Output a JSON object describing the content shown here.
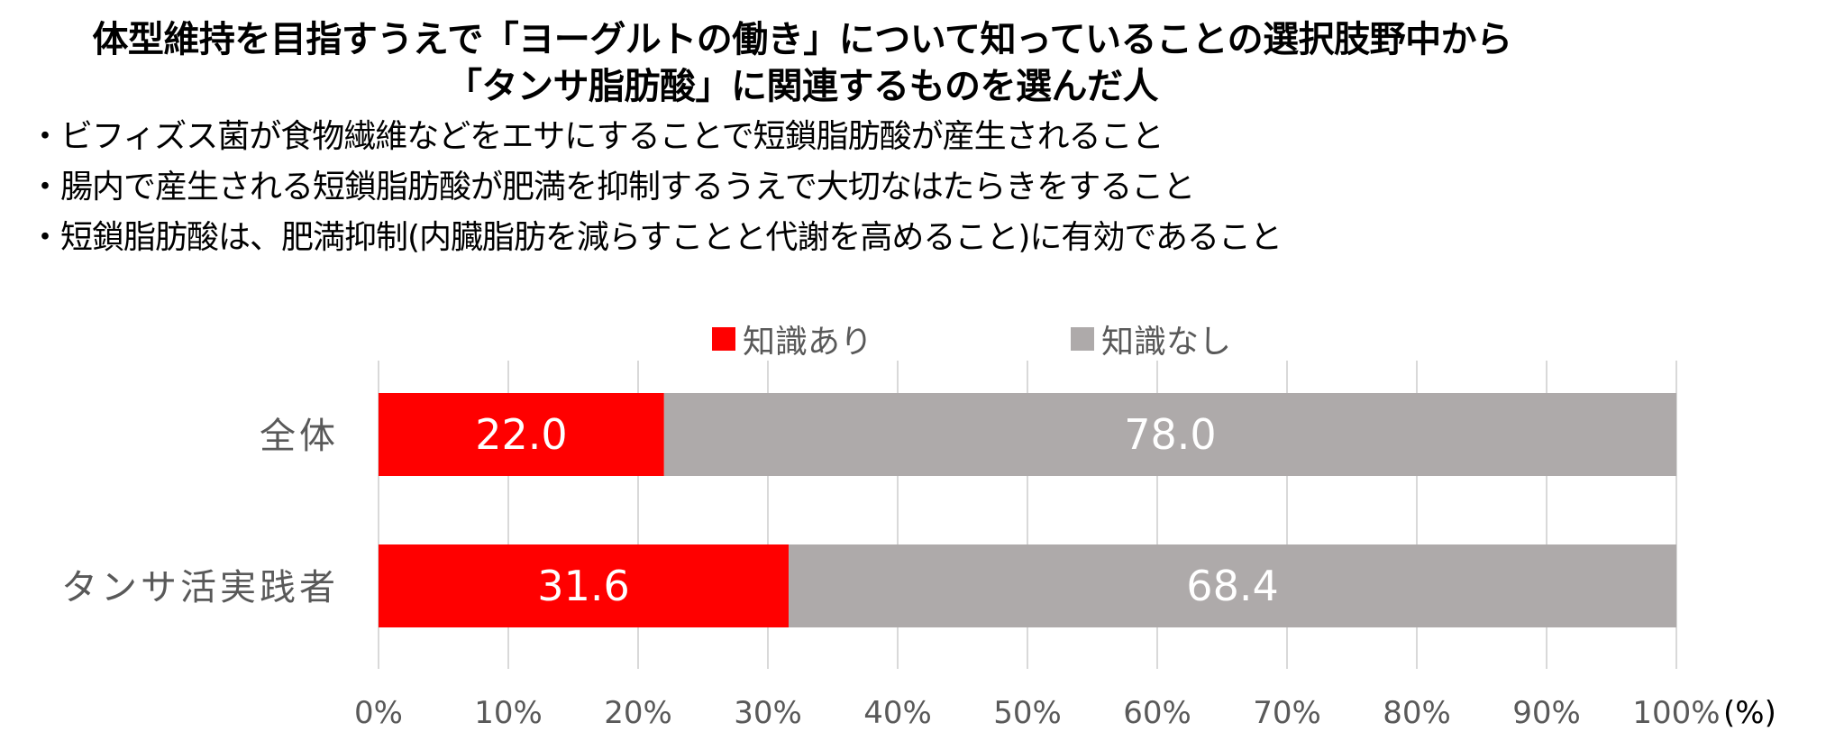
{
  "header": {
    "title_line1": "体型維持を目指すうえで「ヨーグルトの働き」について知っていることの選択肢野中から",
    "title_line2": "「タンサ脂肪酸」に関連するものを選んだ人"
  },
  "notes": [
    "ビフィズス菌が食物繊維などをエサにすることで短鎖脂肪酸が産生されること",
    "腸内で産生される短鎖脂肪酸が肥満を抑制するうえで大切なはたらきをすること",
    "短鎖脂肪酸は、肥満抑制(内臓脂肪を減らすことと代謝を高めること)に有効であること"
  ],
  "chart_data": {
    "type": "bar",
    "orientation": "horizontal",
    "stacked": true,
    "categories": [
      "全体",
      "タンサ活実践者"
    ],
    "series": [
      {
        "name": "知識あり",
        "values": [
          22.0,
          31.6
        ],
        "color": "#ff0000"
      },
      {
        "name": "知識なし",
        "values": [
          78.0,
          68.4
        ],
        "color": "#aeaaaa"
      }
    ],
    "xlim": [
      0,
      100
    ],
    "xticks": [
      0,
      10,
      20,
      30,
      40,
      50,
      60,
      70,
      80,
      90,
      100
    ],
    "xtick_labels": [
      "0%",
      "10%",
      "20%",
      "30%",
      "40%",
      "50%",
      "60%",
      "70%",
      "80%",
      "90%",
      "100%"
    ],
    "xunit": "(%)",
    "grid": true,
    "legend_position": "top",
    "value_label_color": "#ffffff",
    "axis_text_color": "#595959",
    "gridline_color": "#d9d9d9"
  }
}
